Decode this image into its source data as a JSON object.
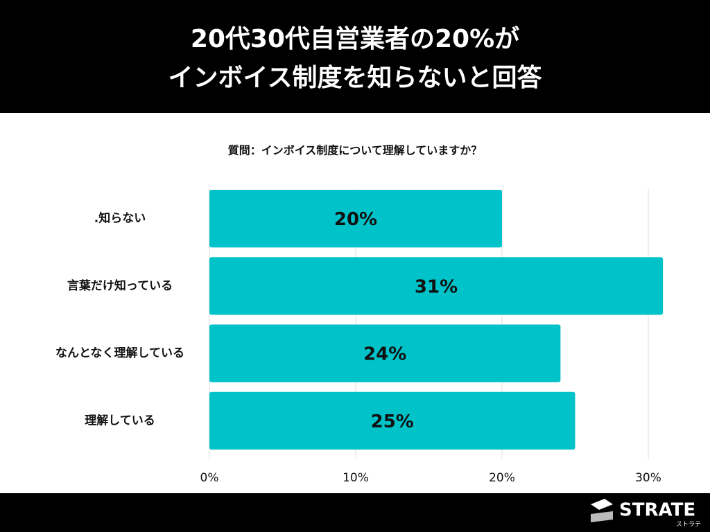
{
  "chart_data": {
    "type": "barh",
    "title": [
      "20代30代自営業者の20%が",
      "インボイス制度を知らないと回答"
    ],
    "subtitle": "質問：インボイス制度について理解していますか？",
    "categories": [
      ".知らない",
      "言葉だけ知っている",
      "なんとなく理解している",
      "理解している"
    ],
    "values": [
      20,
      31,
      24,
      25
    ],
    "value_labels": [
      "20%",
      "31%",
      "24%",
      "25%"
    ],
    "color": "#00c2c9",
    "xlim": [
      0,
      30
    ],
    "xticks": [
      {
        "value": 0,
        "label": "0%"
      },
      {
        "value": 10,
        "label": "10%"
      },
      {
        "value": 20,
        "label": "20%"
      },
      {
        "value": 30,
        "label": "30%"
      }
    ],
    "grid": true
  },
  "footer": {
    "logo": "STRATE",
    "logo_sub": "ストラテ"
  }
}
